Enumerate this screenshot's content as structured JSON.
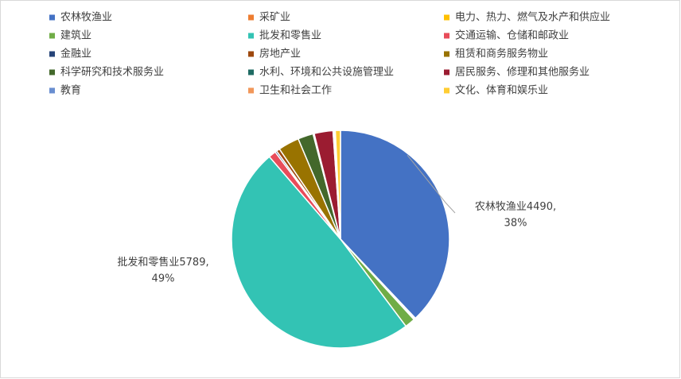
{
  "chart_data": {
    "type": "pie",
    "categories": [
      "农林牧渔业",
      "采矿业",
      "电力、热力、燃气及水产和供应业",
      "建筑业",
      "批发和零售业",
      "交通运输、仓储和邮政业",
      "金融业",
      "房地产业",
      "租赁和商务服务物业",
      "科学研究和技术服务业",
      "水利、环境和公共设施管理业",
      "居民服务、修理和其他服务业",
      "教育",
      "卫生和社会工作",
      "文化、体育和娱乐业"
    ],
    "values": [
      4490,
      20,
      15,
      180,
      5789,
      130,
      30,
      60,
      370,
      270,
      20,
      330,
      20,
      20,
      90
    ],
    "value_labels": [
      "4490,",
      null,
      null,
      null,
      "5789,",
      null,
      null,
      null,
      null,
      null,
      null,
      null,
      null,
      null,
      null
    ],
    "percent_labels": [
      "38%",
      null,
      null,
      null,
      "49%",
      null,
      null,
      null,
      null,
      null,
      null,
      null,
      null,
      null,
      null
    ],
    "colors": [
      "#4472c4",
      "#ed7d31",
      "#ffc000",
      "#70ad47",
      "#33c3b4",
      "#e84c5a",
      "#264478",
      "#9e480e",
      "#997300",
      "#43682b",
      "#1f6b63",
      "#9b1c31",
      "#698ed0",
      "#f1975a",
      "#ffcd33"
    ],
    "legend": "top"
  }
}
